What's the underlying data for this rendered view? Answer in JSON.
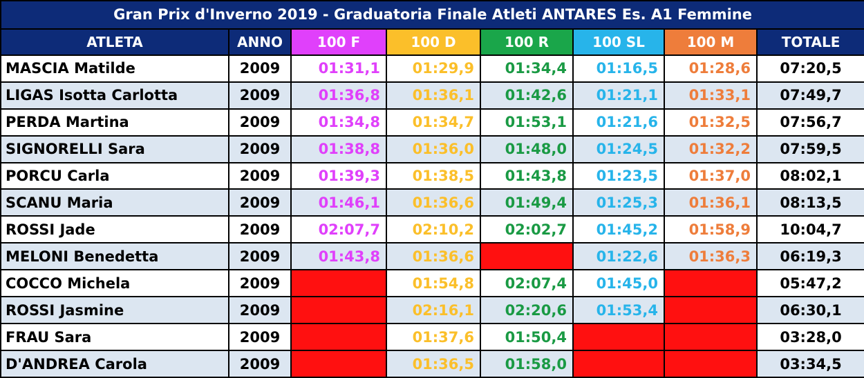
{
  "title": "Gran Prix d'Inverno 2019 - Graduatoria Finale Atleti ANTARES Es. A1 Femmine",
  "table": {
    "headers": [
      "ATLETA",
      "ANNO",
      "100 F",
      "100 D",
      "100 R",
      "100 SL",
      "100 M",
      "TOTALE"
    ],
    "rows": [
      [
        "MASCIA Matilde",
        "2009",
        "01:31,1",
        "01:29,9",
        "01:34,4",
        "01:16,5",
        "01:28,6",
        "07:20,5"
      ],
      [
        "LIGAS Isotta Carlotta",
        "2009",
        "01:36,8",
        "01:36,1",
        "01:42,6",
        "01:21,1",
        "01:33,1",
        "07:49,7"
      ],
      [
        "PERDA Martina",
        "2009",
        "01:34,8",
        "01:34,7",
        "01:53,1",
        "01:21,6",
        "01:32,5",
        "07:56,7"
      ],
      [
        "SIGNORELLI Sara",
        "2009",
        "01:38,8",
        "01:36,0",
        "01:48,0",
        "01:24,5",
        "01:32,2",
        "07:59,5"
      ],
      [
        "PORCU Carla",
        "2009",
        "01:39,3",
        "01:38,5",
        "01:43,8",
        "01:23,5",
        "01:37,0",
        "08:02,1"
      ],
      [
        "SCANU Maria",
        "2009",
        "01:46,1",
        "01:36,6",
        "01:49,4",
        "01:25,3",
        "01:36,1",
        "08:13,5"
      ],
      [
        "ROSSI Jade",
        "2009",
        "02:07,7",
        "02:10,2",
        "02:02,7",
        "01:45,2",
        "01:58,9",
        "10:04,7"
      ],
      [
        "MELONI Benedetta",
        "2009",
        "01:43,8",
        "01:36,6",
        null,
        "01:22,6",
        "01:36,3",
        "06:19,3"
      ],
      [
        "COCCO Michela",
        "2009",
        null,
        "01:54,8",
        "02:07,4",
        "01:45,0",
        null,
        "05:47,2"
      ],
      [
        "ROSSI Jasmine",
        "2009",
        null,
        "02:16,1",
        "02:20,6",
        "01:53,4",
        null,
        "06:30,1"
      ],
      [
        "FRAU Sara",
        "2009",
        null,
        "01:37,6",
        "01:50,4",
        null,
        null,
        "03:28,0"
      ],
      [
        "D'ANDREA Carola",
        "2009",
        null,
        "01:36,5",
        "01:58,0",
        null,
        null,
        "03:34,5"
      ]
    ]
  }
}
